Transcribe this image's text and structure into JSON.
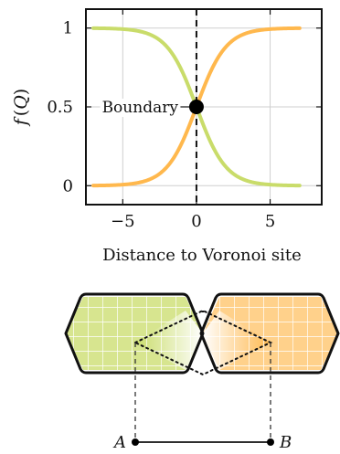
{
  "chart_data": {
    "type": "line",
    "title": "",
    "xlabel": "Distance to Voronoi site",
    "ylabel": "f(Q)",
    "xlim": [
      -7.5,
      8.5
    ],
    "ylim": [
      -0.12,
      1.12
    ],
    "x_ticks": [
      -5,
      0,
      5
    ],
    "x_tick_labels": [
      "−5",
      "0",
      "5"
    ],
    "y_ticks": [
      0,
      0.5,
      1
    ],
    "y_tick_labels": [
      "0",
      "0.5",
      "1"
    ],
    "grid": true,
    "legend": "none",
    "series": [
      {
        "color": "#c9dc6a",
        "x_range": [
          -7,
          7
        ],
        "function": "1 - sigmoid(x)",
        "sample_values": [
          [
            -7,
            0.999
          ],
          [
            -5,
            0.993
          ],
          [
            -2,
            0.881
          ],
          [
            0,
            0.5
          ],
          [
            2,
            0.119
          ],
          [
            5,
            0.007
          ],
          [
            7,
            0.001
          ]
        ]
      },
      {
        "color": "#ffb84d",
        "x_range": [
          -7,
          7
        ],
        "function": "sigmoid(x)",
        "sample_values": [
          [
            -7,
            0.001
          ],
          [
            -5,
            0.007
          ],
          [
            -2,
            0.119
          ],
          [
            0,
            0.5
          ],
          [
            2,
            0.881
          ],
          [
            5,
            0.993
          ],
          [
            7,
            0.999
          ]
        ]
      }
    ],
    "annotations": [
      {
        "type": "vertical-dashed-line",
        "x": 0
      },
      {
        "type": "point",
        "x": 0,
        "y": 0.5,
        "label": "Boundary"
      }
    ]
  },
  "diagram": {
    "left_cell_color": "#c9dc6a",
    "right_cell_color": "#ffb84d",
    "point_a": "A",
    "point_b": "B"
  },
  "axes_labels": {
    "ylabel_f": "f",
    "ylabel_arg": "Q",
    "ylabel_open": "(",
    "ylabel_close": ")"
  }
}
